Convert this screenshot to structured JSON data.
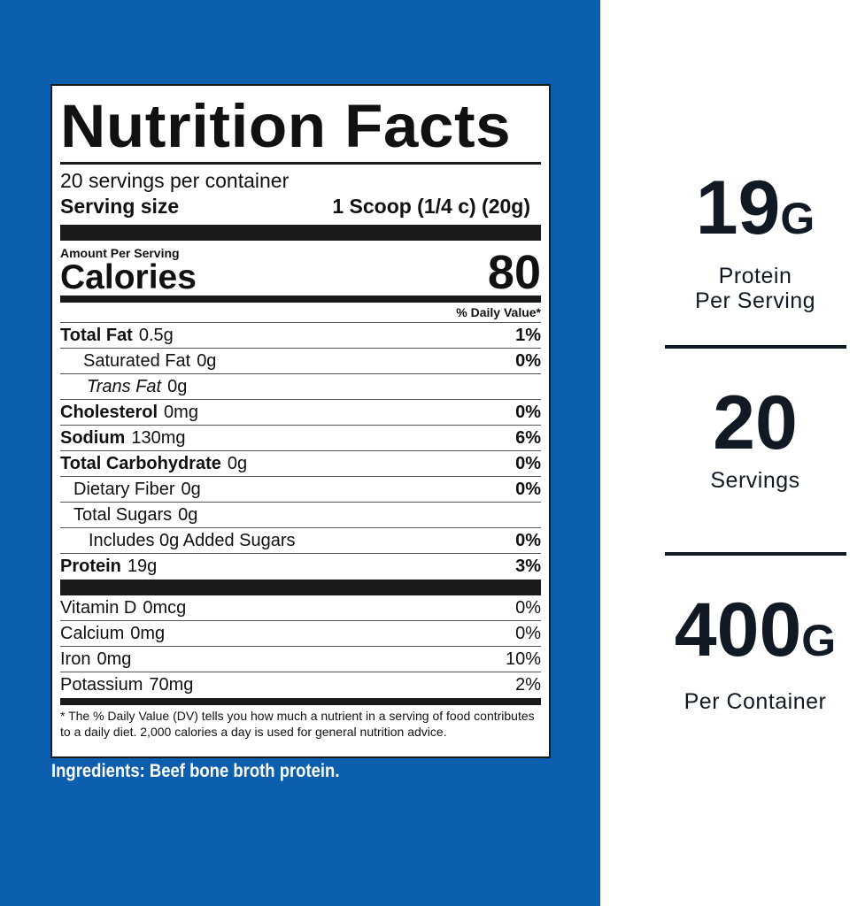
{
  "colors": {
    "background_blue": "#0b5fae",
    "text_dark": "#111a24"
  },
  "label": {
    "title": "Nutrition Facts",
    "servings_per_container": "20 servings per container",
    "serving_size_label": "Serving size",
    "serving_size_value": "1 Scoop (1/4 c) (20g)",
    "amount_per_serving": "Amount Per Serving",
    "calories_label": "Calories",
    "calories_value": "80",
    "dv_header": "% Daily Value*",
    "nutrients": [
      {
        "name": "Total Fat",
        "amount": "0.5g",
        "dv": "1%"
      },
      {
        "name": "Saturated Fat",
        "amount": "0g",
        "dv": "0%"
      },
      {
        "name": "Trans Fat",
        "amount": "0g",
        "dv": ""
      },
      {
        "name": "Cholesterol",
        "amount": "0mg",
        "dv": "0%"
      },
      {
        "name": "Sodium",
        "amount": "130mg",
        "dv": "6%"
      },
      {
        "name": "Total Carbohydrate",
        "amount": "0g",
        "dv": "0%"
      },
      {
        "name": "Dietary Fiber",
        "amount": "0g",
        "dv": "0%"
      },
      {
        "name": "Total Sugars",
        "amount": "0g",
        "dv": ""
      },
      {
        "name": "Includes 0g Added Sugars",
        "amount": "",
        "dv": "0%"
      },
      {
        "name": "Protein",
        "amount": "19g",
        "dv": "3%"
      }
    ],
    "vitamins": [
      {
        "name": "Vitamin D",
        "amount": "0mcg",
        "dv": "0%"
      },
      {
        "name": "Calcium",
        "amount": "0mg",
        "dv": "0%"
      },
      {
        "name": "Iron",
        "amount": "0mg",
        "dv": "10%"
      },
      {
        "name": "Potassium",
        "amount": "70mg",
        "dv": "2%"
      }
    ],
    "footnote": "* The % Daily Value (DV) tells you how much a nutrient in a serving of food contributes to a daily diet. 2,000 calories a day is used for general nutrition advice."
  },
  "ingredients": "Ingredients: Beef bone broth protein.",
  "stats": [
    {
      "value": "19",
      "unit": "G",
      "caption": [
        "Protein",
        "Per Serving"
      ]
    },
    {
      "value": "20",
      "unit": "",
      "caption": [
        "Servings"
      ]
    },
    {
      "value": "400",
      "unit": "G",
      "caption": [
        "Per Container"
      ]
    }
  ]
}
